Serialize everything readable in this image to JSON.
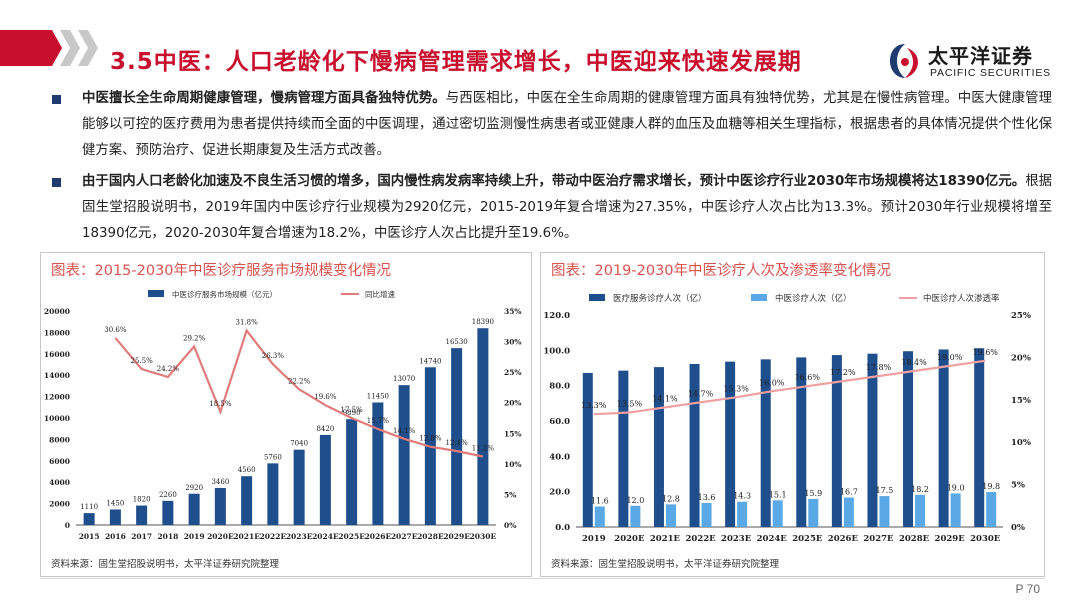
{
  "header": {
    "title": "3.5中医：人口老龄化下慢病管理需求增长，中医迎来快速发展期",
    "logo_cn": "太平洋证券",
    "logo_en": "PACIFIC SECURITIES",
    "accent_color": "#c8102e"
  },
  "bullets": [
    {
      "bold": "中医擅长全生命周期健康管理，慢病管理方面具备独特优势。",
      "text": "与西医相比，中医在全生命周期的健康管理方面具有独特优势，尤其是在慢性病管理。中医大健康管理能够以可控的医疗费用为患者提供持续而全面的中医调理，通过密切监测慢性病患者或亚健康人群的血压及血糖等相关生理指标，根据患者的具体情况提供个性化保健方案、预防治疗、促进长期康复及生活方式改善。"
    },
    {
      "bold": "由于国内人口老龄化加速及不良生活习惯的增多，国内慢性病发病率持续上升，带动中医治疗需求增长，预计中医诊疗行业2030年市场规模将达18390亿元。",
      "text": "根据固生堂招股说明书，2019年国内中医诊疗行业规模为2920亿元，2015-2019年复合增速为27.35%，中医诊疗人次占比为13.3%。预计2030年行业规模将增至18390亿元，2020-2030年复合增速为18.2%，中医诊疗人次占比提升至19.6%。"
    }
  ],
  "left_chart": {
    "title": "图表：2015-2030年中医诊疗服务市场规模变化情况",
    "source": "资料来源：固生堂招股说明书，太平洋证券研究院整理"
  },
  "right_chart": {
    "title": "图表：2019-2030年中医诊疗人次及渗透率变化情况",
    "source": "资料来源：固生堂招股说明书，太平洋证券研究院整理"
  },
  "page_number": "P 70",
  "chart_data": [
    {
      "type": "bar",
      "title": "图表：2015-2030年中医诊疗服务市场规模变化情况",
      "categories": [
        "2015",
        "2016",
        "2017",
        "2018",
        "2019",
        "2020E",
        "2021E",
        "2022E",
        "2023E",
        "2024E",
        "2025E",
        "2026E",
        "2027E",
        "2028E",
        "2029E",
        "2030E"
      ],
      "series": [
        {
          "name": "中医诊疗服务市场规模（亿元）",
          "type": "bar",
          "axis": "left",
          "color": "#1f4e8c",
          "values": [
            1110,
            1450,
            1820,
            2260,
            2920,
            3460,
            4560,
            5760,
            7040,
            8420,
            9890,
            11450,
            13070,
            14740,
            16530,
            18390
          ]
        },
        {
          "name": "同比增速",
          "type": "line",
          "axis": "right",
          "color": "#e07b7b",
          "values": [
            null,
            30.6,
            25.5,
            24.2,
            29.2,
            18.5,
            31.8,
            26.3,
            22.2,
            19.6,
            17.5,
            15.7,
            14.1,
            12.8,
            12.1,
            11.2
          ],
          "labels": [
            "",
            "30.6%",
            "25.5%",
            "24.2%",
            "29.2%",
            "18.5%",
            "31.8%",
            "26.3%",
            "22.2%",
            "19.6%",
            "17.5%",
            "15.7%",
            "14.1%",
            "12.8%",
            "12.1%",
            "11.2%"
          ]
        }
      ],
      "ylim": [
        0,
        20000
      ],
      "yticks": [
        "0",
        "2000",
        "4000",
        "6000",
        "8000",
        "10000",
        "12000",
        "14000",
        "16000",
        "18000",
        "20000"
      ],
      "y2lim": [
        0,
        35
      ],
      "y2ticks": [
        "0%",
        "5%",
        "10%",
        "15%",
        "20%",
        "25%",
        "30%",
        "35%"
      ],
      "legend": "top"
    },
    {
      "type": "bar",
      "title": "图表：2019-2030年中医诊疗人次及渗透率变化情况",
      "categories": [
        "2019",
        "2020E",
        "2021E",
        "2022E",
        "2023E",
        "2024E",
        "2025E",
        "2026E",
        "2027E",
        "2028E",
        "2029E",
        "2030E"
      ],
      "series": [
        {
          "name": "医疗服务诊疗人次（亿）",
          "type": "bar",
          "axis": "left",
          "color": "#1f4e8c",
          "values": [
            87.2,
            88.5,
            90.5,
            92.3,
            93.6,
            94.9,
            96.0,
            97.3,
            98.1,
            99.5,
            100.5,
            101.2
          ]
        },
        {
          "name": "中医诊疗人次（亿）",
          "type": "bar",
          "axis": "left",
          "color": "#5aa8e6",
          "values": [
            11.6,
            12.0,
            12.8,
            13.6,
            14.3,
            15.1,
            15.9,
            16.7,
            17.5,
            18.2,
            19.0,
            19.8
          ],
          "labels": [
            "11.6",
            "12.0",
            "12.8",
            "13.6",
            "14.3",
            "15.1",
            "15.9",
            "16.7",
            "17.5",
            "18.2",
            "19.0",
            "19.8"
          ]
        },
        {
          "name": "中医诊疗人次渗透率",
          "type": "line",
          "axis": "right",
          "color": "#f0a0a0",
          "values": [
            13.3,
            13.5,
            14.1,
            14.7,
            15.3,
            16.0,
            16.6,
            17.2,
            17.8,
            18.4,
            19.0,
            19.6
          ],
          "labels": [
            "13.3%",
            "13.5%",
            "14.1%",
            "14.7%",
            "15.3%",
            "16.0%",
            "16.6%",
            "17.2%",
            "17.8%",
            "18.4%",
            "19.0%",
            "19.6%"
          ]
        }
      ],
      "ylim": [
        0,
        120
      ],
      "yticks": [
        "0.0",
        "20.0",
        "40.0",
        "60.0",
        "80.0",
        "100.0",
        "120.0"
      ],
      "y2lim": [
        0,
        25
      ],
      "y2ticks": [
        "0%",
        "5%",
        "10%",
        "15%",
        "20%",
        "25%"
      ],
      "legend": "top"
    }
  ]
}
